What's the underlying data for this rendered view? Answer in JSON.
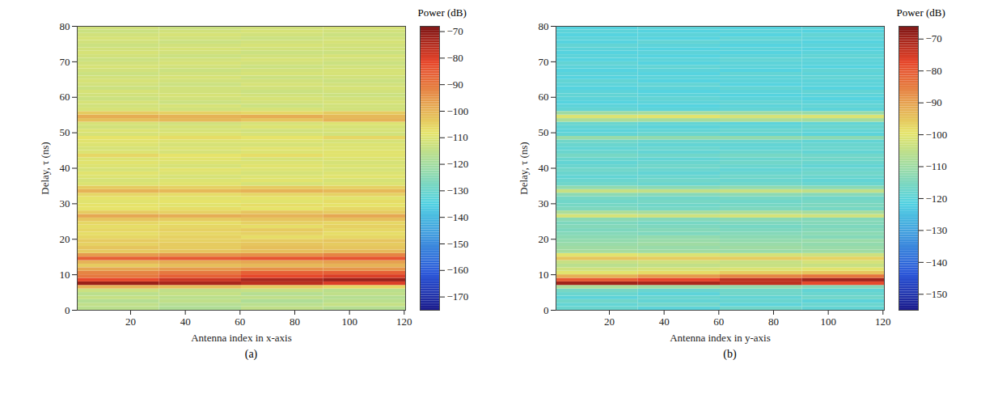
{
  "chart_data": [
    {
      "type": "heatmap",
      "panel": "(a)",
      "xlabel": "Antenna index in x-axis",
      "ylabel": "Delay, τ (ns)",
      "xlim": [
        0.5,
        120.5
      ],
      "xticks": [
        20,
        40,
        60,
        80,
        100,
        120
      ],
      "ylim": [
        0,
        80
      ],
      "yticks": [
        0,
        10,
        20,
        30,
        40,
        50,
        60,
        70,
        80
      ],
      "colorbar": {
        "title": "Power (dB)",
        "lim": [
          -175,
          -68
        ],
        "ticks": [
          -70,
          -80,
          -90,
          -100,
          -110,
          -120,
          -130,
          -140,
          -150,
          -160,
          -170
        ]
      },
      "antenna_bins": [
        0.5,
        30.5,
        60.5,
        90.5,
        120.5
      ],
      "delay_bins": [
        0,
        1,
        2,
        3,
        4,
        5,
        6,
        7,
        8,
        9,
        10,
        11,
        12,
        13,
        14,
        15,
        16,
        17,
        18,
        19,
        20,
        21,
        22,
        23,
        24,
        25,
        26,
        27,
        28,
        29,
        30,
        31,
        32,
        33,
        34,
        35,
        36,
        37,
        38,
        39,
        40,
        41,
        42,
        43,
        44,
        45,
        46,
        47,
        48,
        49,
        50,
        51,
        52,
        53,
        54,
        55,
        56,
        57,
        58,
        59,
        60,
        61,
        62,
        63,
        64,
        65,
        66,
        67,
        68,
        69,
        70,
        71,
        72,
        73,
        74,
        75,
        76,
        77,
        78,
        79,
        80
      ],
      "power": [
        [
          -116,
          -118,
          -115,
          -117
        ],
        [
          -115,
          -117,
          -116,
          -114
        ],
        [
          -117,
          -115,
          -118,
          -116
        ],
        [
          -114,
          -116,
          -115,
          -117
        ],
        [
          -116,
          -114,
          -117,
          -115
        ],
        [
          -113,
          -115,
          -114,
          -116
        ],
        [
          -100,
          -102,
          -104,
          -106
        ],
        [
          -72,
          -74,
          -76,
          -80
        ],
        [
          -82,
          -78,
          -74,
          -72
        ],
        [
          -90,
          -86,
          -82,
          -80
        ],
        [
          -92,
          -90,
          -86,
          -86
        ],
        [
          -98,
          -96,
          -94,
          -95
        ],
        [
          -104,
          -102,
          -101,
          -100
        ],
        [
          -100,
          -99,
          -98,
          -97
        ],
        [
          -86,
          -85,
          -84,
          -84
        ],
        [
          -96,
          -95,
          -94,
          -92
        ],
        [
          -104,
          -103,
          -102,
          -101
        ],
        [
          -103,
          -104,
          -102,
          -103
        ],
        [
          -105,
          -104,
          -103,
          -104
        ],
        [
          -104,
          -105,
          -104,
          -103
        ],
        [
          -106,
          -105,
          -107,
          -106
        ],
        [
          -107,
          -106,
          -105,
          -107
        ],
        [
          -106,
          -105,
          -104,
          -106
        ],
        [
          -107,
          -106,
          -107,
          -105
        ],
        [
          -106,
          -107,
          -105,
          -106
        ],
        [
          -103,
          -104,
          -103,
          -102
        ],
        [
          -98,
          -99,
          -100,
          -98
        ],
        [
          -104,
          -105,
          -103,
          -104
        ],
        [
          -108,
          -107,
          -108,
          -106
        ],
        [
          -108,
          -109,
          -107,
          -108
        ],
        [
          -109,
          -108,
          -109,
          -107
        ],
        [
          -108,
          -109,
          -108,
          -109
        ],
        [
          -106,
          -107,
          -106,
          -105
        ],
        [
          -100,
          -101,
          -100,
          -101
        ],
        [
          -104,
          -105,
          -104,
          -105
        ],
        [
          -110,
          -109,
          -111,
          -110
        ],
        [
          -111,
          -110,
          -109,
          -111
        ],
        [
          -110,
          -111,
          -110,
          -109
        ],
        [
          -109,
          -110,
          -111,
          -110
        ],
        [
          -111,
          -109,
          -110,
          -111
        ],
        [
          -110,
          -111,
          -109,
          -110
        ],
        [
          -109,
          -110,
          -110,
          -111
        ],
        [
          -110,
          -109,
          -111,
          -110
        ],
        [
          -106,
          -108,
          -107,
          -109
        ],
        [
          -110,
          -111,
          -110,
          -109
        ],
        [
          -111,
          -110,
          -109,
          -110
        ],
        [
          -110,
          -111,
          -111,
          -110
        ],
        [
          -109,
          -110,
          -110,
          -111
        ],
        [
          -108,
          -107,
          -108,
          -106
        ],
        [
          -111,
          -110,
          -111,
          -112
        ],
        [
          -110,
          -111,
          -112,
          -111
        ],
        [
          -112,
          -111,
          -110,
          -111
        ],
        [
          -111,
          -112,
          -111,
          -110
        ],
        [
          -102,
          -101,
          -103,
          -100
        ],
        [
          -99,
          -100,
          -99,
          -101
        ],
        [
          -104,
          -105,
          -106,
          -104
        ],
        [
          -111,
          -112,
          -111,
          -112
        ],
        [
          -112,
          -111,
          -113,
          -112
        ],
        [
          -111,
          -113,
          -112,
          -111
        ],
        [
          -113,
          -112,
          -111,
          -112
        ],
        [
          -112,
          -111,
          -112,
          -113
        ],
        [
          -111,
          -112,
          -113,
          -112
        ],
        [
          -113,
          -112,
          -112,
          -111
        ],
        [
          -112,
          -113,
          -111,
          -112
        ],
        [
          -111,
          -112,
          -112,
          -113
        ],
        [
          -112,
          -111,
          -113,
          -112
        ],
        [
          -113,
          -112,
          -111,
          -111
        ],
        [
          -112,
          -113,
          -112,
          -111
        ],
        [
          -111,
          -112,
          -113,
          -112
        ],
        [
          -112,
          -111,
          -112,
          -113
        ],
        [
          -113,
          -112,
          -111,
          -112
        ],
        [
          -112,
          -113,
          -112,
          -111
        ],
        [
          -111,
          -112,
          -113,
          -113
        ],
        [
          -112,
          -111,
          -112,
          -112
        ],
        [
          -113,
          -112,
          -111,
          -112
        ],
        [
          -112,
          -113,
          -112,
          -111
        ],
        [
          -111,
          -112,
          -113,
          -112
        ],
        [
          -112,
          -111,
          -112,
          -113
        ],
        [
          -113,
          -112,
          -111,
          -112
        ],
        [
          -112,
          -113,
          -112,
          -111
        ]
      ]
    },
    {
      "type": "heatmap",
      "panel": "(b)",
      "xlabel": "Antenna index in y-axis",
      "ylabel": "Delay, τ (ns)",
      "xlim": [
        0.5,
        120.5
      ],
      "xticks": [
        20,
        40,
        60,
        80,
        100,
        120
      ],
      "ylim": [
        0,
        80
      ],
      "yticks": [
        0,
        10,
        20,
        30,
        40,
        50,
        60,
        70,
        80
      ],
      "colorbar": {
        "title": "Power (dB)",
        "lim": [
          -155,
          -66
        ],
        "ticks": [
          -70,
          -80,
          -90,
          -100,
          -110,
          -120,
          -130,
          -140,
          -150
        ]
      },
      "antenna_bins": [
        0.5,
        30.5,
        60.5,
        90.5,
        120.5
      ],
      "delay_bins": [
        0,
        1,
        2,
        3,
        4,
        5,
        6,
        7,
        8,
        9,
        10,
        11,
        12,
        13,
        14,
        15,
        16,
        17,
        18,
        19,
        20,
        21,
        22,
        23,
        24,
        25,
        26,
        27,
        28,
        29,
        30,
        31,
        32,
        33,
        34,
        35,
        36,
        37,
        38,
        39,
        40,
        41,
        42,
        43,
        44,
        45,
        46,
        47,
        48,
        49,
        50,
        51,
        52,
        53,
        54,
        55,
        56,
        57,
        58,
        59,
        60,
        61,
        62,
        63,
        64,
        65,
        66,
        67,
        68,
        69,
        70,
        71,
        72,
        73,
        74,
        75,
        76,
        77,
        78,
        79,
        80
      ],
      "power": [
        [
          -118,
          -120,
          -117,
          -119
        ],
        [
          -119,
          -117,
          -120,
          -118
        ],
        [
          -117,
          -119,
          -118,
          -120
        ],
        [
          -120,
          -118,
          -119,
          -117
        ],
        [
          -118,
          -120,
          -117,
          -118
        ],
        [
          -116,
          -118,
          -117,
          -119
        ],
        [
          -108,
          -110,
          -112,
          -114
        ],
        [
          -70,
          -71,
          -73,
          -78
        ],
        [
          -80,
          -77,
          -73,
          -70
        ],
        [
          -92,
          -89,
          -86,
          -84
        ],
        [
          -100,
          -98,
          -96,
          -95
        ],
        [
          -103,
          -102,
          -101,
          -100
        ],
        [
          -106,
          -105,
          -104,
          -104
        ],
        [
          -104,
          -103,
          -104,
          -102
        ],
        [
          -95,
          -96,
          -96,
          -97
        ],
        [
          -100,
          -101,
          -102,
          -103
        ],
        [
          -109,
          -110,
          -111,
          -110
        ],
        [
          -110,
          -111,
          -110,
          -111
        ],
        [
          -111,
          -110,
          -111,
          -112
        ],
        [
          -112,
          -111,
          -112,
          -111
        ],
        [
          -113,
          -112,
          -113,
          -114
        ],
        [
          -114,
          -115,
          -114,
          -113
        ],
        [
          -115,
          -114,
          -115,
          -114
        ],
        [
          -114,
          -115,
          -116,
          -115
        ],
        [
          -115,
          -116,
          -115,
          -114
        ],
        [
          -113,
          -114,
          -113,
          -114
        ],
        [
          -102,
          -103,
          -102,
          -103
        ],
        [
          -108,
          -109,
          -108,
          -109
        ],
        [
          -115,
          -116,
          -115,
          -116
        ],
        [
          -116,
          -117,
          -116,
          -115
        ],
        [
          -117,
          -116,
          -117,
          -116
        ],
        [
          -116,
          -117,
          -116,
          -117
        ],
        [
          -113,
          -114,
          -113,
          -114
        ],
        [
          -104,
          -105,
          -104,
          -105
        ],
        [
          -112,
          -113,
          -112,
          -113
        ],
        [
          -117,
          -118,
          -117,
          -118
        ],
        [
          -118,
          -117,
          -118,
          -119
        ],
        [
          -119,
          -118,
          -117,
          -118
        ],
        [
          -118,
          -119,
          -118,
          -117
        ],
        [
          -117,
          -118,
          -119,
          -118
        ],
        [
          -118,
          -117,
          -118,
          -119
        ],
        [
          -119,
          -118,
          -117,
          -118
        ],
        [
          -118,
          -119,
          -118,
          -117
        ],
        [
          -116,
          -117,
          -116,
          -117
        ],
        [
          -118,
          -119,
          -118,
          -119
        ],
        [
          -119,
          -118,
          -119,
          -118
        ],
        [
          -118,
          -119,
          -119,
          -118
        ],
        [
          -117,
          -118,
          -118,
          -119
        ],
        [
          -111,
          -112,
          -112,
          -113
        ],
        [
          -119,
          -118,
          -119,
          -120
        ],
        [
          -120,
          -119,
          -118,
          -119
        ],
        [
          -119,
          -120,
          -119,
          -118
        ],
        [
          -118,
          -119,
          -120,
          -119
        ],
        [
          -108,
          -109,
          -108,
          -109
        ],
        [
          -101,
          -100,
          -102,
          -101
        ],
        [
          -110,
          -109,
          -110,
          -111
        ],
        [
          -119,
          -120,
          -119,
          -120
        ],
        [
          -120,
          -121,
          -120,
          -119
        ],
        [
          -121,
          -120,
          -119,
          -120
        ],
        [
          -120,
          -119,
          -120,
          -121
        ],
        [
          -119,
          -120,
          -121,
          -120
        ],
        [
          -120,
          -121,
          -120,
          -119
        ],
        [
          -121,
          -120,
          -119,
          -121
        ],
        [
          -120,
          -119,
          -121,
          -120
        ],
        [
          -119,
          -121,
          -120,
          -120
        ],
        [
          -121,
          -120,
          -120,
          -119
        ],
        [
          -120,
          -121,
          -119,
          -120
        ],
        [
          -121,
          -120,
          -121,
          -119
        ],
        [
          -120,
          -119,
          -120,
          -121
        ],
        [
          -119,
          -121,
          -120,
          -120
        ],
        [
          -121,
          -120,
          -119,
          -120
        ],
        [
          -120,
          -121,
          -120,
          -119
        ],
        [
          -121,
          -120,
          -121,
          -120
        ],
        [
          -120,
          -121,
          -120,
          -121
        ],
        [
          -119,
          -120,
          -121,
          -120
        ],
        [
          -121,
          -119,
          -120,
          -121
        ],
        [
          -120,
          -121,
          -119,
          -120
        ],
        [
          -121,
          -120,
          -121,
          -119
        ],
        [
          -120,
          -121,
          -120,
          -121
        ],
        [
          -121,
          -120,
          -121,
          -120
        ]
      ]
    }
  ]
}
